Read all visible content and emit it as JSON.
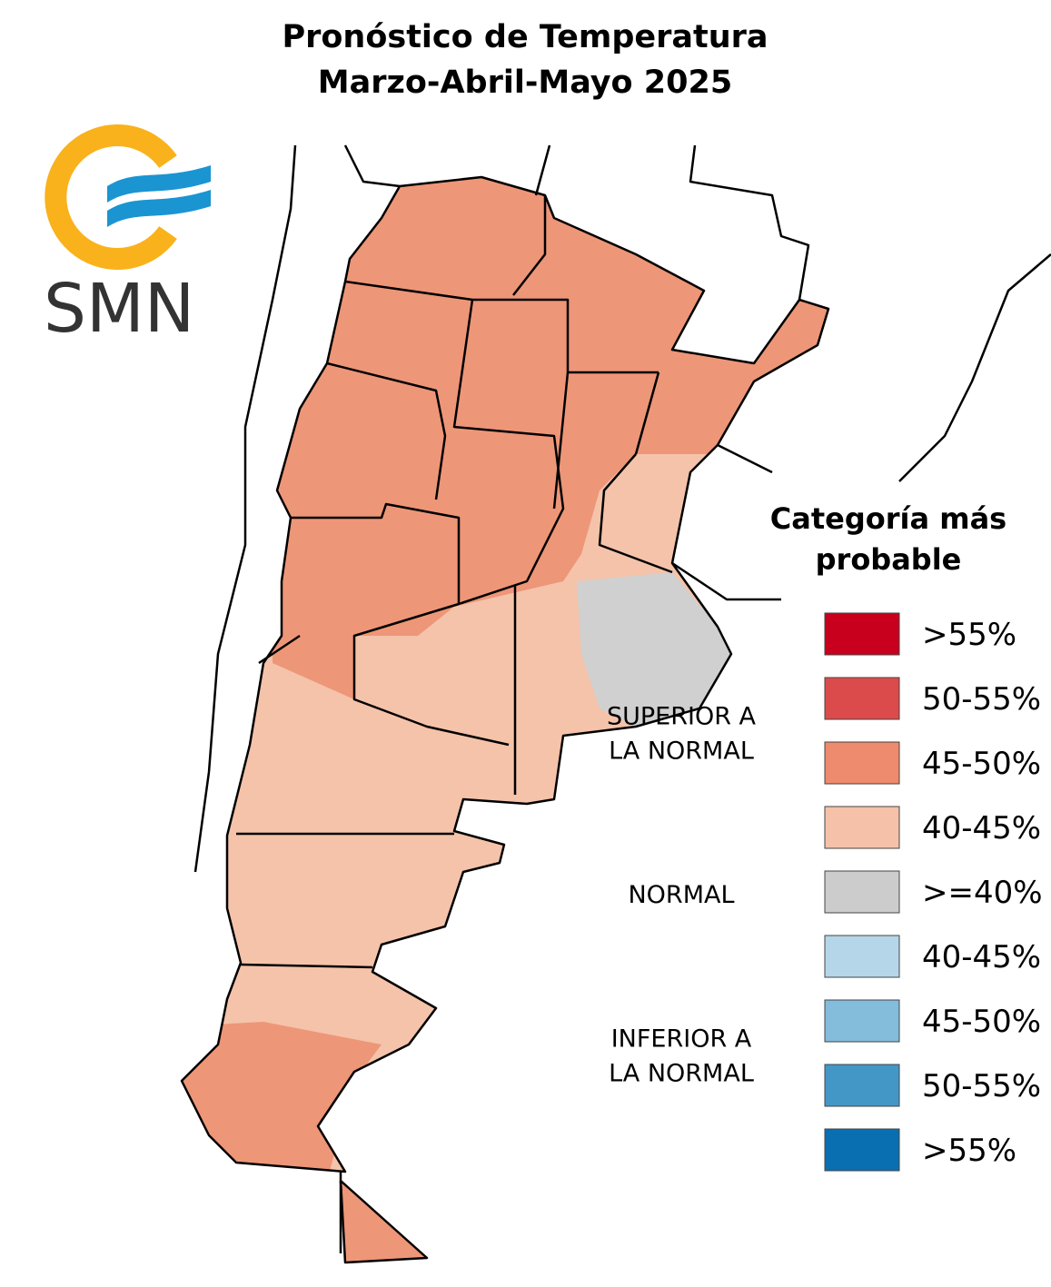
{
  "title": [
    "Pronóstico de Temperatura",
    "Marzo-Abril-Mayo 2025"
  ],
  "logo": {
    "text": "SMN"
  },
  "legend": {
    "title": [
      "Categoría más",
      "probable"
    ],
    "groups": [
      {
        "label": [
          "SUPERIOR A",
          "LA NORMAL"
        ],
        "items": [
          {
            "label": ">55%",
            "color": "#c8001e"
          },
          {
            "label": "50-55%",
            "color": "#dc4b4b"
          },
          {
            "label": "45-50%",
            "color": "#ee8a6e"
          },
          {
            "label": "40-45%",
            "color": "#f5c2a9"
          }
        ]
      },
      {
        "label": [
          "NORMAL"
        ],
        "items": [
          {
            "label": ">=40%",
            "color": "#cccccc"
          }
        ]
      },
      {
        "label": [
          "INFERIOR A",
          "LA NORMAL"
        ],
        "items": [
          {
            "label": "40-45%",
            "color": "#b5d6e8"
          },
          {
            "label": "45-50%",
            "color": "#84bcdb"
          },
          {
            "label": "50-55%",
            "color": "#4397c7"
          },
          {
            "label": ">55%",
            "color": "#0a6fb0"
          }
        ]
      }
    ]
  }
}
